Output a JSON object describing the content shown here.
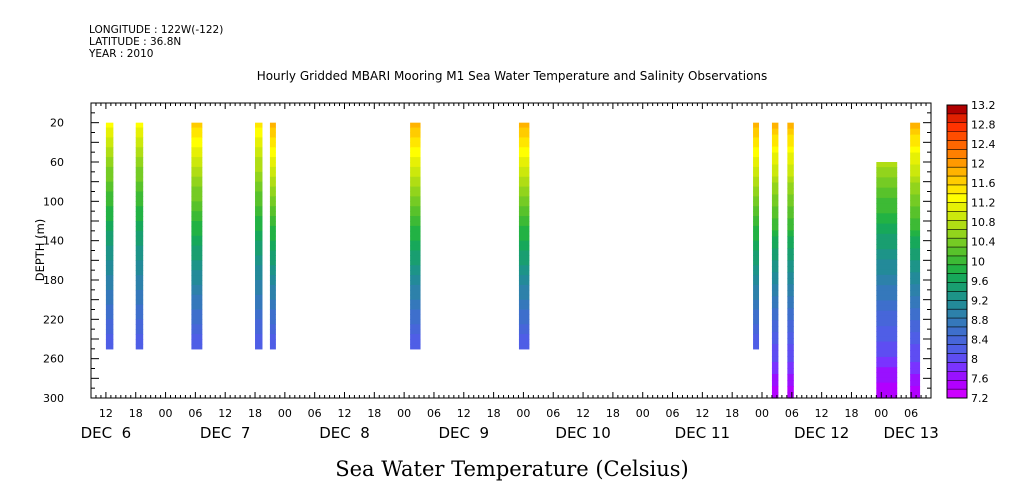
{
  "header": {
    "longitude": "LONGITUDE : 122W(-122)",
    "latitude": "LATITUDE : 36.8N",
    "year": "YEAR : 2010"
  },
  "chart_data": {
    "type": "heatmap",
    "title": "Hourly Gridded MBARI Mooring M1 Sea Water Temperature and Salinity Observations",
    "xlabel": "",
    "ylabel": "DEPTH (m)",
    "bottom_title": "Sea Water Temperature (Celsius)",
    "y_reversed": true,
    "ylim": [
      300,
      0
    ],
    "y_ticks": [
      20,
      60,
      100,
      140,
      180,
      220,
      260,
      300
    ],
    "x_unit": "hours since 2010-12-06 00:00",
    "xlim": [
      9,
      178
    ],
    "x_hour_ticks": [
      {
        "h": 12,
        "label": "12"
      },
      {
        "h": 18,
        "label": "18"
      },
      {
        "h": 24,
        "label": "00"
      },
      {
        "h": 30,
        "label": "06"
      },
      {
        "h": 36,
        "label": "12"
      },
      {
        "h": 42,
        "label": "18"
      },
      {
        "h": 48,
        "label": "00"
      },
      {
        "h": 54,
        "label": "06"
      },
      {
        "h": 60,
        "label": "12"
      },
      {
        "h": 66,
        "label": "18"
      },
      {
        "h": 72,
        "label": "00"
      },
      {
        "h": 78,
        "label": "06"
      },
      {
        "h": 84,
        "label": "12"
      },
      {
        "h": 90,
        "label": "18"
      },
      {
        "h": 96,
        "label": "00"
      },
      {
        "h": 102,
        "label": "06"
      },
      {
        "h": 108,
        "label": "12"
      },
      {
        "h": 114,
        "label": "18"
      },
      {
        "h": 120,
        "label": "00"
      },
      {
        "h": 126,
        "label": "06"
      },
      {
        "h": 132,
        "label": "12"
      },
      {
        "h": 138,
        "label": "18"
      },
      {
        "h": 144,
        "label": "00"
      },
      {
        "h": 150,
        "label": "06"
      },
      {
        "h": 156,
        "label": "12"
      },
      {
        "h": 162,
        "label": "18"
      },
      {
        "h": 168,
        "label": "00"
      },
      {
        "h": 174,
        "label": "06"
      }
    ],
    "day_labels": [
      {
        "h": 12,
        "label": "DEC  6"
      },
      {
        "h": 36,
        "label": "DEC  7"
      },
      {
        "h": 60,
        "label": "DEC  8"
      },
      {
        "h": 84,
        "label": "DEC  9"
      },
      {
        "h": 108,
        "label": "DEC 10"
      },
      {
        "h": 132,
        "label": "DEC 11"
      },
      {
        "h": 156,
        "label": "DEC 12"
      },
      {
        "h": 174,
        "label": "DEC 13"
      }
    ],
    "colorbar": {
      "min": 7.2,
      "max": 13.2,
      "step": 0.2,
      "tick_labels": [
        "13.2",
        "12.8",
        "12.4",
        "12",
        "11.6",
        "11.2",
        "10.8",
        "10.4",
        "10",
        "9.6",
        "9.2",
        "8.8",
        "8.4",
        "8",
        "7.6",
        "7.2"
      ],
      "colors": [
        "#cc00ff",
        "#b200ff",
        "#9911ff",
        "#7a33ff",
        "#5e4df2",
        "#4f5ee6",
        "#4766d9",
        "#3e6fcc",
        "#3578bb",
        "#2d81aa",
        "#238a99",
        "#1d9488",
        "#199e70",
        "#17a85a",
        "#22b244",
        "#3dba35",
        "#58c22b",
        "#75cb24",
        "#92d41c",
        "#b0dd14",
        "#cce80c",
        "#e6f005",
        "#ffff00",
        "#ffe600",
        "#ffcc00",
        "#ffb300",
        "#ff9900",
        "#ff8000",
        "#ff6600",
        "#ff4d00",
        "#ff3300",
        "#e02000",
        "#b00000"
      ]
    },
    "series": [
      {
        "start": 12.0,
        "end": 13.5,
        "depth_top": 20,
        "depth_bottom": 250,
        "temp_top": 11.7,
        "temp_bottom": 8.2
      },
      {
        "start": 18.0,
        "end": 19.5,
        "depth_top": 20,
        "depth_bottom": 250,
        "temp_top": 11.7,
        "temp_bottom": 8.2
      },
      {
        "start": 29.2,
        "end": 31.4,
        "depth_top": 20,
        "depth_bottom": 250,
        "temp_top": 12.2,
        "temp_bottom": 8.2
      },
      {
        "start": 42.0,
        "end": 43.5,
        "depth_top": 20,
        "depth_bottom": 250,
        "temp_top": 12.0,
        "temp_bottom": 8.2
      },
      {
        "start": 45.0,
        "end": 46.2,
        "depth_top": 20,
        "depth_bottom": 250,
        "temp_top": 12.4,
        "temp_bottom": 8.2
      },
      {
        "start": 73.2,
        "end": 75.3,
        "depth_top": 20,
        "depth_bottom": 250,
        "temp_top": 12.4,
        "temp_bottom": 8.2
      },
      {
        "start": 95.1,
        "end": 97.2,
        "depth_top": 20,
        "depth_bottom": 250,
        "temp_top": 12.4,
        "temp_bottom": 8.2
      },
      {
        "start": 142.2,
        "end": 143.4,
        "depth_top": 20,
        "depth_bottom": 250,
        "temp_top": 12.4,
        "temp_bottom": 8.2
      },
      {
        "start": 146.0,
        "end": 147.3,
        "depth_top": 20,
        "depth_bottom": 300,
        "temp_top": 12.4,
        "temp_bottom": 7.4
      },
      {
        "start": 149.1,
        "end": 150.4,
        "depth_top": 20,
        "depth_bottom": 300,
        "temp_top": 12.4,
        "temp_bottom": 7.4
      },
      {
        "start": 167.0,
        "end": 171.2,
        "depth_top": 60,
        "depth_bottom": 300,
        "temp_top": 11.2,
        "temp_bottom": 7.4
      },
      {
        "start": 173.8,
        "end": 175.8,
        "depth_top": 20,
        "depth_bottom": 300,
        "temp_top": 12.4,
        "temp_bottom": 7.4
      }
    ]
  }
}
